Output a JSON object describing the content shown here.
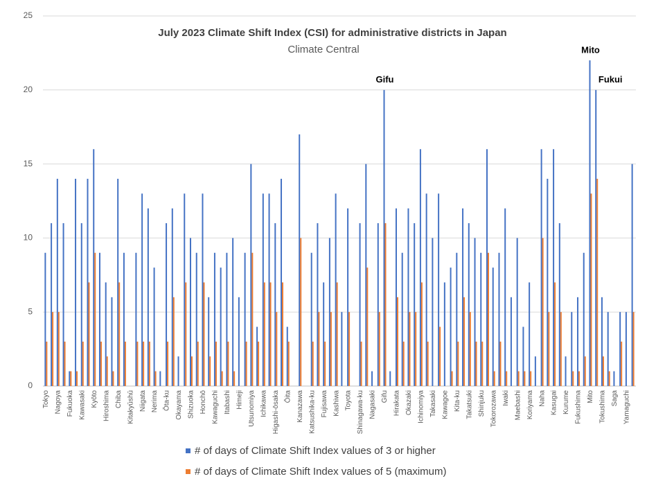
{
  "chart_data": {
    "type": "bar",
    "title": "July 2023 Climate Shift Index (CSI) for administrative districts in Japan",
    "subtitle": "Climate Central",
    "categories": [
      "Tokyo",
      null,
      "Nagoya",
      null,
      "Fukuoka",
      null,
      "Kawasaki",
      null,
      "Kyōto",
      null,
      "Hiroshima",
      null,
      "Chiba",
      null,
      "Kitakyūshū",
      null,
      "Niigata",
      null,
      "Nerima",
      null,
      "Ōta-ku",
      null,
      "Okayama",
      null,
      "Shizuoka",
      null,
      "Honchō",
      null,
      "Kawaguchi",
      null,
      "Itabashi",
      null,
      "Himeji",
      null,
      "Utsunomiya",
      null,
      "Ichikawa",
      null,
      "Higashi-ōsaka",
      null,
      "Ōita",
      null,
      "Kanazawa",
      null,
      "Katsushika-ku",
      null,
      "Fujisawa",
      null,
      "Kashiwa",
      null,
      "Toyota",
      null,
      "Shinagawa-ku",
      null,
      "Nagasaki",
      null,
      "Gifu",
      null,
      "Hirakata",
      null,
      "Okazaki",
      null,
      "Ichinomiya",
      null,
      "Takasaki",
      null,
      "Kawagoe",
      null,
      "Kita-ku",
      null,
      "Takatsuki",
      null,
      "Shinjuku",
      null,
      "Tokorozawa",
      null,
      "Iwaki",
      null,
      "Maebashi",
      null,
      "Koriyama",
      null,
      "Naha",
      null,
      "Kasugai",
      null,
      "Kurume",
      null,
      "Fukushima",
      null,
      "Mito",
      null,
      "Tokushima",
      null,
      "Saga",
      null,
      "Yamaguchi",
      null
    ],
    "series": [
      {
        "name": "# of days of Climate Shift Index values of 3 or higher",
        "color": "#4472c4",
        "values": [
          9,
          11,
          14,
          11,
          1,
          14,
          11,
          14,
          16,
          9,
          7,
          6,
          14,
          9,
          0,
          9,
          13,
          12,
          8,
          1,
          11,
          12,
          2,
          13,
          10,
          9,
          13,
          6,
          9,
          8,
          9,
          10,
          6,
          9,
          15,
          4,
          13,
          13,
          11,
          14,
          4,
          0,
          17,
          0,
          9,
          11,
          7,
          10,
          13,
          5,
          12,
          0,
          11,
          15,
          1,
          11,
          20,
          1,
          12,
          9,
          12,
          11,
          16,
          13,
          10,
          13,
          7,
          8,
          9,
          12,
          11,
          10,
          9,
          16,
          8,
          9,
          12,
          6,
          10,
          4,
          7,
          2,
          16,
          14,
          16,
          11,
          2,
          5,
          6,
          9,
          22,
          20,
          6,
          5,
          1,
          5,
          5,
          15
        ]
      },
      {
        "name": "# of days of Climate Shift Index values of 5 (maximum)",
        "color": "#ed7d31",
        "values": [
          3,
          5,
          5,
          3,
          1,
          1,
          3,
          7,
          9,
          3,
          2,
          1,
          7,
          3,
          0,
          3,
          3,
          3,
          1,
          0,
          3,
          6,
          0,
          7,
          2,
          3,
          7,
          2,
          3,
          1,
          3,
          1,
          0,
          3,
          9,
          3,
          7,
          7,
          5,
          7,
          3,
          0,
          10,
          0,
          3,
          5,
          3,
          5,
          7,
          0,
          5,
          0,
          3,
          8,
          0,
          5,
          11,
          0,
          6,
          3,
          5,
          5,
          7,
          3,
          0,
          4,
          0,
          1,
          3,
          6,
          5,
          3,
          3,
          9,
          1,
          3,
          1,
          0,
          1,
          1,
          1,
          0,
          10,
          5,
          7,
          5,
          0,
          1,
          1,
          2,
          13,
          14,
          2,
          1,
          0,
          3,
          0,
          5
        ]
      }
    ],
    "annotations": [
      "Gifu",
      "Mito",
      "Fukui"
    ],
    "ylim": [
      0,
      25
    ],
    "yticks": [
      0,
      5,
      10,
      15,
      20,
      25
    ],
    "grid": true,
    "legend": "bottom"
  }
}
